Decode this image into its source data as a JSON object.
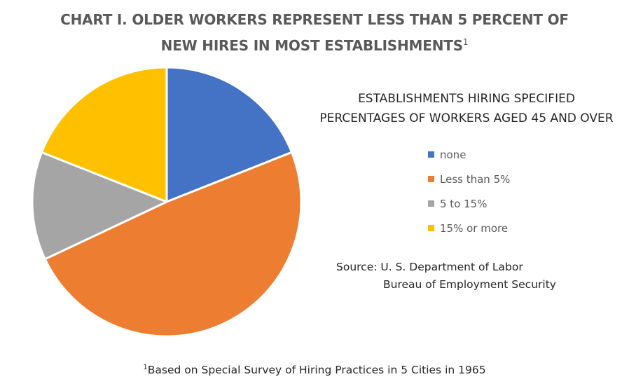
{
  "chart_data": {
    "type": "pie",
    "title_line1": "CHART I. OLDER WORKERS REPRESENT LESS THAN 5 PERCENT OF",
    "title_line2": "NEW HIRES IN MOST ESTABLISHMENTS",
    "title_footnote_mark": "1",
    "legend_title_line1": "ESTABLISHMENTS HIRING SPECIFIED",
    "legend_title_line2": "PERCENTAGES OF WORKERS AGED 45 AND OVER",
    "legend_placement": "right",
    "categories": [
      "none",
      "Less than 5%",
      "5 to 15%",
      "15% or more"
    ],
    "values": [
      19,
      49,
      13,
      19
    ],
    "colors": [
      "#4472C4",
      "#ED7D31",
      "#A5A5A5",
      "#FFC000"
    ]
  },
  "source": {
    "line1": "Source: U. S. Department of Labor",
    "line2": "Bureau of Employment Security"
  },
  "footnote": {
    "mark": "1",
    "text": "Based on Special Survey of Hiring Practices in 5 Cities in 1965"
  }
}
